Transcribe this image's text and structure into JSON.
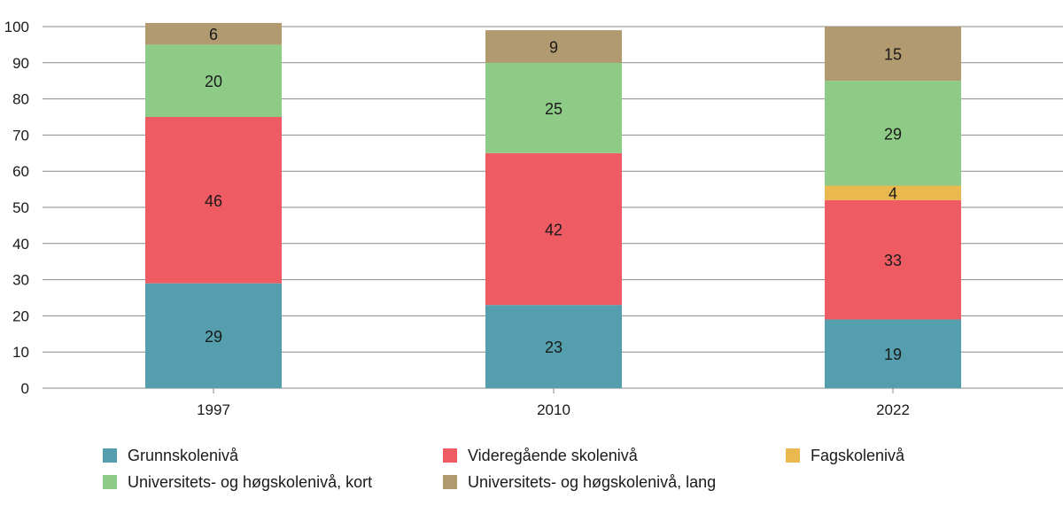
{
  "chart_data": {
    "type": "bar",
    "stacked": true,
    "categories": [
      "1997",
      "2010",
      "2022"
    ],
    "series": [
      {
        "name": "Grunnskolenivå",
        "color": "#549ead",
        "values": [
          29,
          23,
          19
        ]
      },
      {
        "name": "Videregående skolenivå",
        "color": "#ef5b62",
        "values": [
          46,
          42,
          33
        ]
      },
      {
        "name": "Fagskolenivå",
        "color": "#e9b84e",
        "values": [
          0,
          0,
          4
        ]
      },
      {
        "name": "Universitets- og høgskolenivå, kort",
        "color": "#8ecb87",
        "values": [
          20,
          25,
          29
        ]
      },
      {
        "name": "Universitets- og høgskolenivå, lang",
        "color": "#b29a70",
        "values": [
          6,
          9,
          15
        ]
      }
    ],
    "ylim": [
      0,
      100
    ],
    "yticks": [
      "0",
      "10",
      "20",
      "30",
      "40",
      "50",
      "60",
      "70",
      "80",
      "90",
      "100"
    ],
    "grid": true,
    "legend_position": "bottom",
    "title": "",
    "xlabel": "",
    "ylabel": ""
  }
}
